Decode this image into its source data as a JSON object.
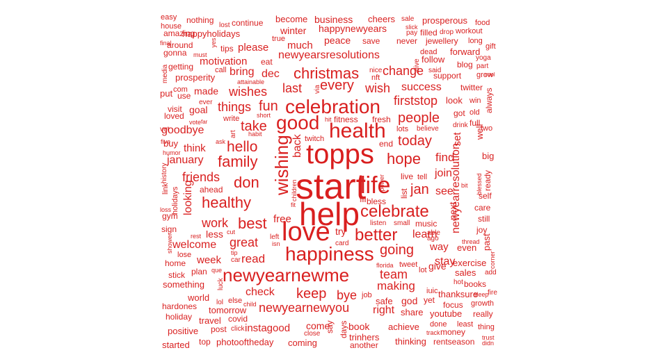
{
  "colors": {
    "word": "#d91f1f",
    "background": "#ffffff"
  },
  "words": [
    "start",
    "help",
    "topps",
    "life",
    "love",
    "happiness",
    "health",
    "celebration",
    "newyearnewme",
    "good",
    "celebrate",
    "better",
    "wishing",
    "family",
    "healthy",
    "hope",
    "christmas",
    "every",
    "wish",
    "hello",
    "don",
    "best",
    "going",
    "today",
    "firststop",
    "people",
    "take",
    "fun",
    "last",
    "team",
    "keep",
    "newyearnewyou",
    "jan",
    "wishes",
    "bye",
    "things",
    "change",
    "success",
    "great",
    "friends",
    "work",
    "making",
    "newyearsresolutions",
    "learn",
    "back",
    "find",
    "january",
    "dec",
    "look",
    "read",
    "bring",
    "welcome",
    "free",
    "check",
    "motivation",
    "looking",
    "join",
    "see",
    "right",
    "stay",
    "newyearresolution",
    "goodbye",
    "think",
    "week",
    "less",
    "try",
    "instagood",
    "book",
    "say",
    "give",
    "way",
    "music",
    "come",
    "well",
    "set",
    "much",
    "peace",
    "winter",
    "happynewyears",
    "please",
    "happyholidays",
    "goal",
    "made",
    "prosperity",
    "amazing",
    "around",
    "business",
    "become",
    "cheers",
    "prosperous",
    "nothing",
    "continue",
    "save",
    "never",
    "jewellery",
    "forward",
    "follow",
    "support",
    "blog",
    "twitter",
    "always",
    "got",
    "full",
    "next",
    "past",
    "even",
    "ready",
    "big",
    "self",
    "care",
    "still",
    "joy",
    "god",
    "yet",
    "safe",
    "share",
    "youtube",
    "achieve",
    "thinking",
    "rentseason",
    "another",
    "trinhers",
    "days",
    "photooftheday",
    "coming",
    "started",
    "positive",
    "travel",
    "holiday",
    "hardones",
    "world",
    "tomorrow",
    "covid",
    "post",
    "top",
    "sales",
    "exercise",
    "books",
    "growth",
    "really",
    "thing",
    "least",
    "done",
    "money",
    "focus",
    "thanksure",
    "something",
    "stick",
    "home",
    "plan",
    "lose",
    "sign",
    "gym",
    "holidays",
    "link",
    "buy",
    "vet",
    "visit",
    "loved",
    "put",
    "use",
    "getting",
    "gonna",
    "eat",
    "tips",
    "easy",
    "house",
    "food",
    "workout",
    "long",
    "gift",
    "grow",
    "part",
    "yoga",
    "end",
    "fitness",
    "fresh",
    "lots",
    "believe",
    "drink",
    "two",
    "old",
    "win",
    "live",
    "tell",
    "bless",
    "fill",
    "list",
    "listen",
    "small",
    "able",
    "ago",
    "thread",
    "lot",
    "tweet",
    "florida",
    "hot",
    "add",
    "fire",
    "iuic",
    "job",
    "card",
    "left",
    "isn",
    "close",
    "click",
    "child",
    "else",
    "lol",
    "que",
    "car",
    "tip",
    "rest",
    "cut",
    "luck",
    "ask",
    "short",
    "habit",
    "write",
    "vote",
    "far",
    "ever",
    "com",
    "call",
    "nft",
    "attainable",
    "nice",
    "said",
    "alive",
    "dead",
    "filled",
    "drop",
    "pay",
    "sale",
    "slick",
    "lost",
    "true",
    "final",
    "must",
    "media",
    "yes",
    "humor",
    "history",
    "five",
    "loss",
    "shower",
    "ahead",
    "twitch",
    "power",
    "children",
    "hit",
    "fit",
    "corner",
    "sleep",
    "trust",
    "didn",
    "bit",
    "blessed",
    "via",
    "track",
    "art",
    "cool"
  ]
}
